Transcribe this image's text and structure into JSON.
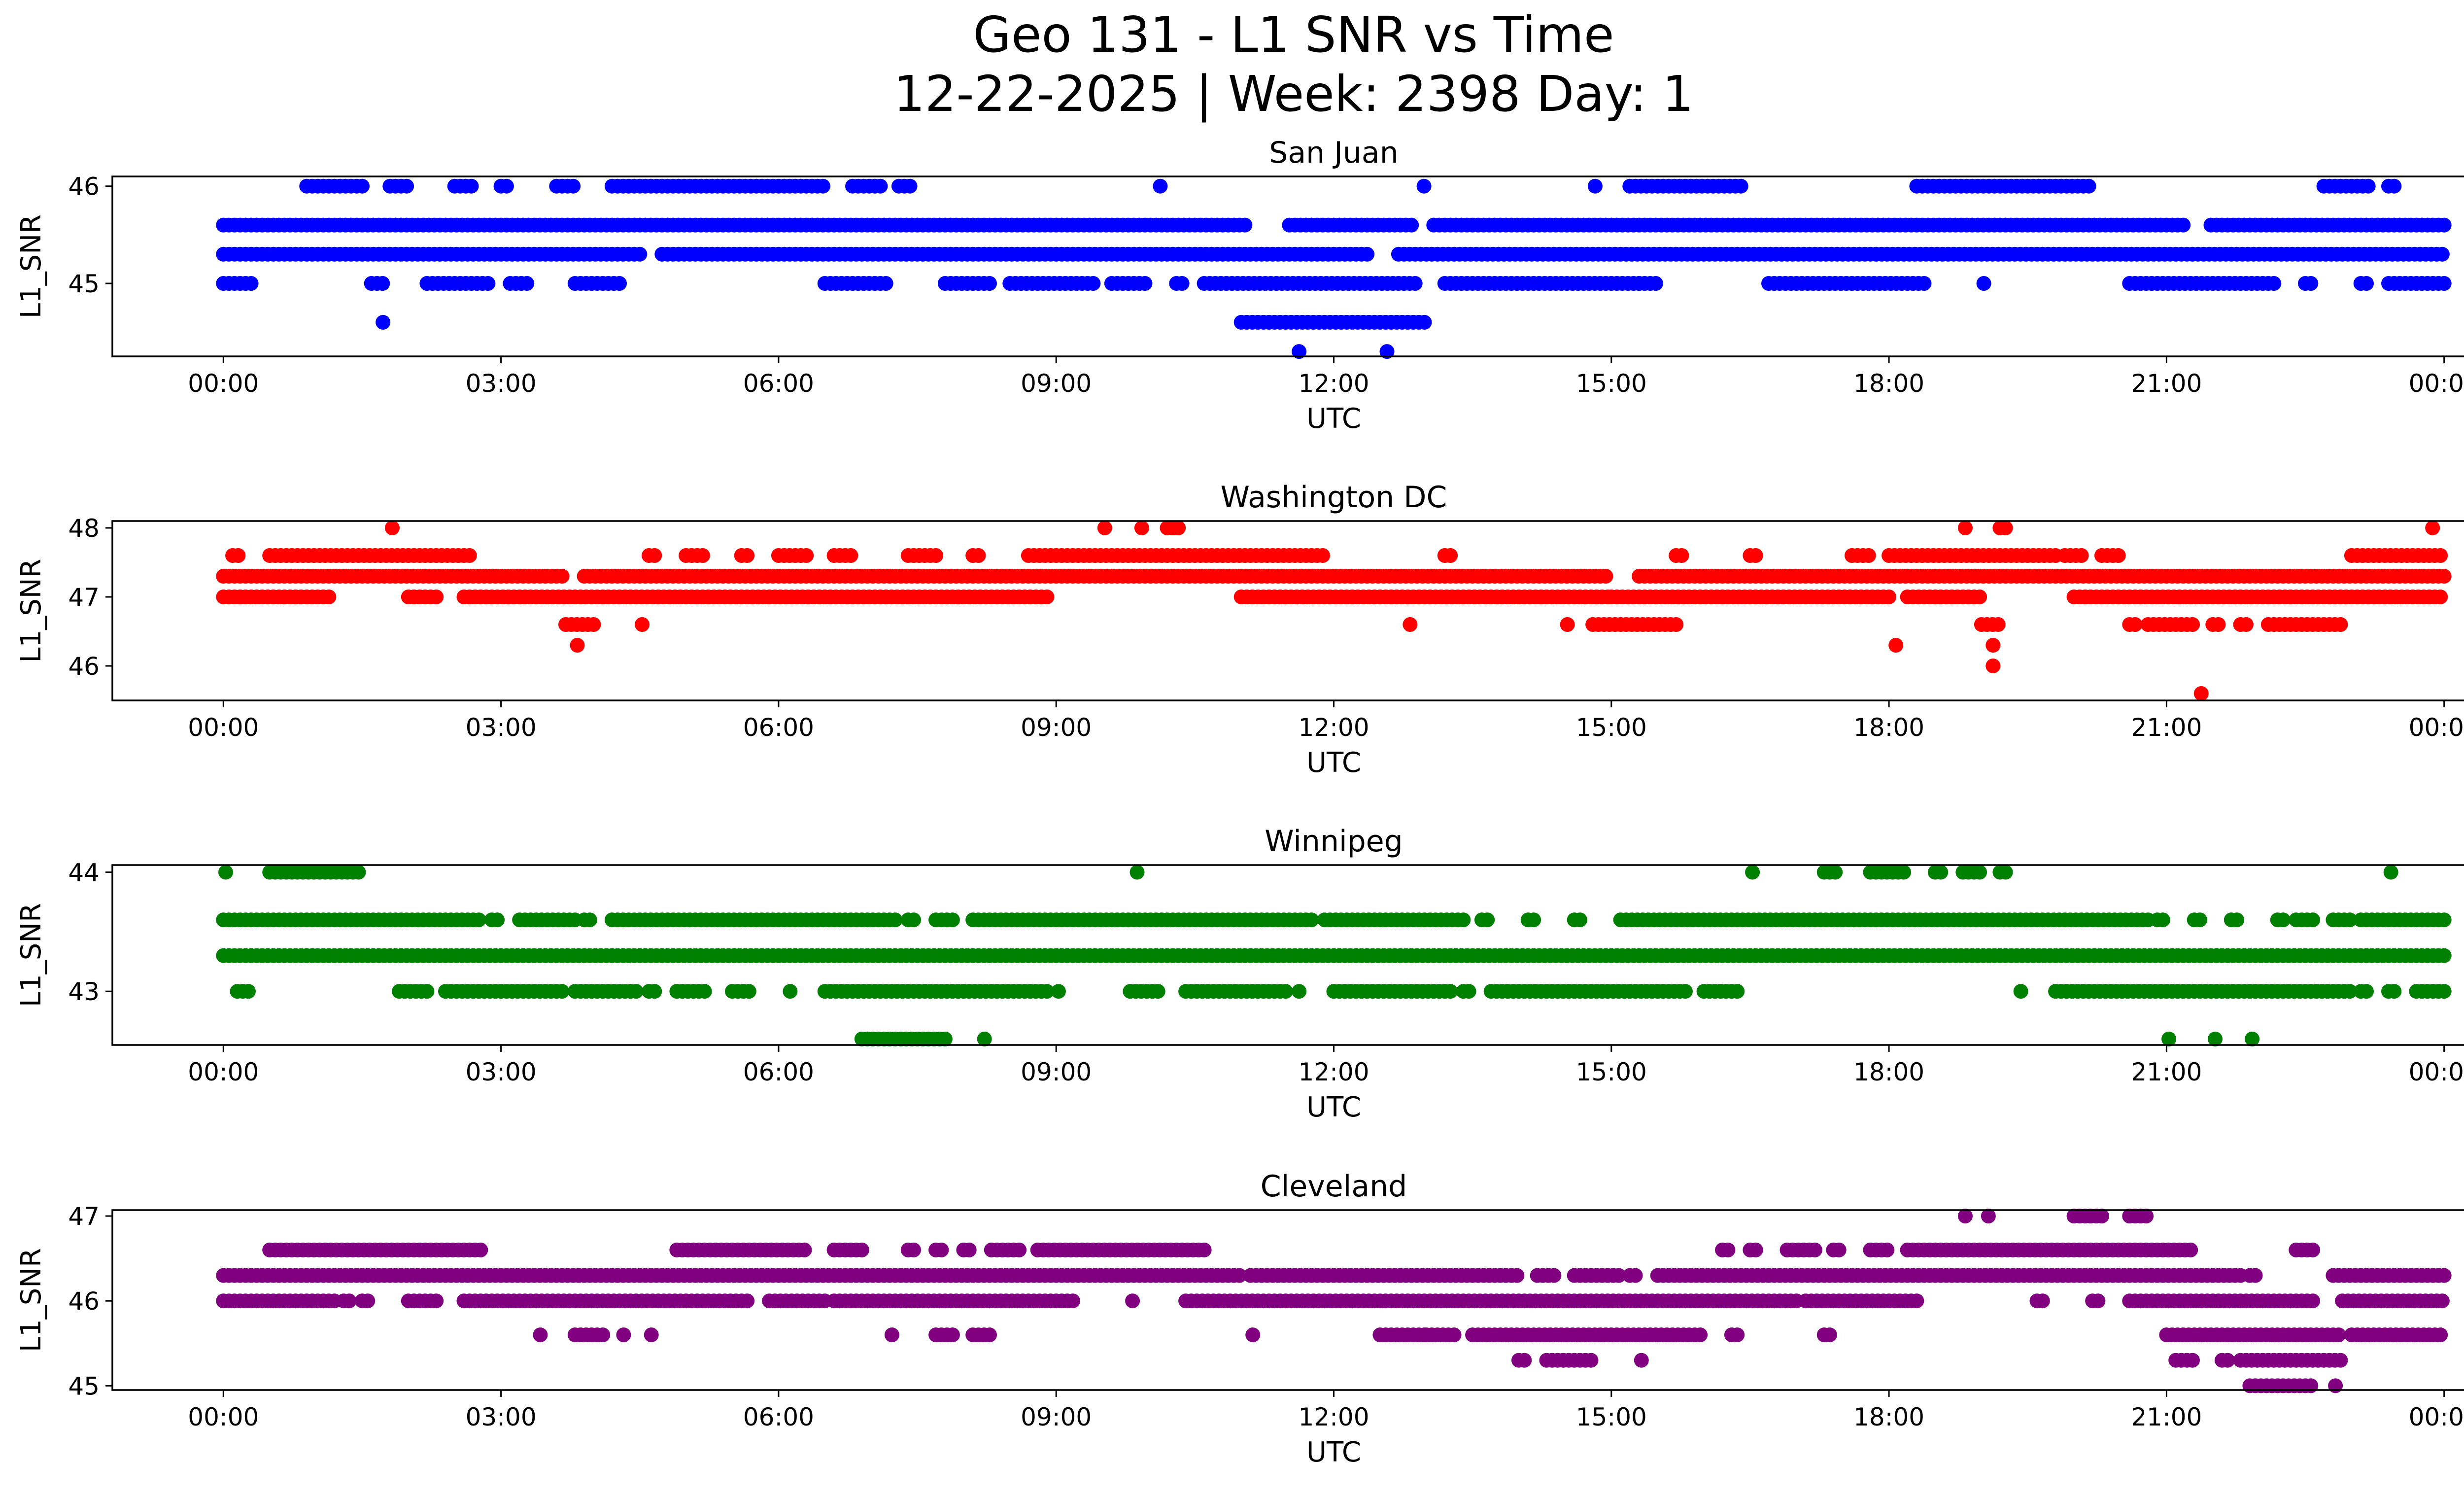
{
  "figure": {
    "title_line1": "Geo 131 - L1 SNR vs Time",
    "title_line2": "12-22-2025 | Week: 2398 Day: 1"
  },
  "chart_data": [
    {
      "type": "scatter",
      "title": "San Juan",
      "xlabel": "UTC",
      "ylabel": "L1_SNR",
      "color": "#0000ff",
      "x_ticks": [
        "00:00",
        "03:00",
        "06:00",
        "09:00",
        "12:00",
        "15:00",
        "18:00",
        "21:00",
        "00:00"
      ],
      "y_ticks": [
        45,
        46
      ],
      "xlim": [
        -1.2,
        25.2
      ],
      "ylim": [
        44.25,
        46.1
      ],
      "levels": [
        {
          "y": 45.6,
          "ranges": [
            [
              0,
              24
            ]
          ],
          "gaps": [
            [
              11.08,
              11.5
            ],
            [
              12.9,
              13.05
            ],
            [
              21.2,
              21.45
            ]
          ]
        },
        {
          "y": 45.3,
          "ranges": [
            [
              0,
              12.4
            ],
            [
              12.7,
              24
            ]
          ],
          "gaps": [
            [
              4.5,
              4.7
            ]
          ]
        },
        {
          "y": 45.0,
          "ranges": [
            [
              0,
              0.35
            ],
            [
              1.6,
              1.75
            ],
            [
              2.2,
              2.9
            ],
            [
              3.1,
              3.3
            ],
            [
              3.8,
              4.3
            ],
            [
              6.5,
              7.2
            ],
            [
              7.8,
              8.3
            ],
            [
              8.5,
              9.4
            ],
            [
              9.6,
              10.0
            ],
            [
              10.3,
              10.4
            ],
            [
              10.6,
              12.9
            ],
            [
              13.2,
              15.3
            ],
            [
              15.3,
              15.5
            ],
            [
              16.7,
              18.4
            ],
            [
              19.0,
              19.05
            ],
            [
              20.6,
              22.2
            ],
            [
              22.5,
              22.6
            ],
            [
              23.1,
              23.2
            ],
            [
              23.4,
              24
            ]
          ]
        },
        {
          "y": 46.0,
          "ranges": [
            [
              0.9,
              1.55
            ],
            [
              1.8,
              2.0
            ],
            [
              2.5,
              2.7
            ],
            [
              3.0,
              3.1
            ],
            [
              3.6,
              3.8
            ],
            [
              4.2,
              6.5
            ],
            [
              6.8,
              7.1
            ],
            [
              7.3,
              7.45
            ],
            [
              10.1,
              10.15
            ],
            [
              12.95,
              13.0
            ],
            [
              14.8,
              14.85
            ],
            [
              15.2,
              16.4
            ],
            [
              18.3,
              20.2
            ],
            [
              22.7,
              23.2
            ],
            [
              23.4,
              23.5
            ]
          ]
        },
        {
          "y": 44.6,
          "ranges": [
            [
              11.0,
              13.0
            ]
          ]
        },
        {
          "y": 44.6,
          "ranges": [
            [
              1.7,
              1.75
            ]
          ]
        },
        {
          "y": 44.3,
          "ranges": [
            [
              11.6,
              11.65
            ],
            [
              12.55,
              12.6
            ]
          ]
        }
      ]
    },
    {
      "type": "scatter",
      "title": "Washington DC",
      "xlabel": "UTC",
      "ylabel": "L1_SNR",
      "color": "#ff0000",
      "x_ticks": [
        "00:00",
        "03:00",
        "06:00",
        "09:00",
        "12:00",
        "15:00",
        "18:00",
        "21:00",
        "00:00"
      ],
      "y_ticks": [
        46,
        47,
        48
      ],
      "xlim": [
        -1.2,
        25.2
      ],
      "ylim": [
        45.5,
        48.1
      ],
      "levels": [
        {
          "y": 47.3,
          "ranges": [
            [
              0,
              3.7
            ],
            [
              3.9,
              24
            ]
          ],
          "gaps": [
            [
              15.0,
              15.3
            ]
          ]
        },
        {
          "y": 47.0,
          "ranges": [
            [
              0,
              1.15
            ],
            [
              2.0,
              2.3
            ],
            [
              2.6,
              8.9
            ],
            [
              11.0,
              15.0
            ],
            [
              15.0,
              18.0
            ],
            [
              18.2,
              19.0
            ],
            [
              20.0,
              24
            ]
          ]
        },
        {
          "y": 47.6,
          "ranges": [
            [
              0.1,
              0.2
            ],
            [
              0.5,
              2.7
            ],
            [
              4.6,
              4.7
            ],
            [
              5.0,
              5.2
            ],
            [
              5.6,
              5.7
            ],
            [
              6.0,
              6.3
            ],
            [
              6.6,
              6.8
            ],
            [
              7.4,
              7.7
            ],
            [
              8.1,
              8.2
            ],
            [
              8.7,
              11.9
            ],
            [
              13.2,
              13.3
            ],
            [
              15.7,
              15.8
            ],
            [
              16.5,
              16.6
            ],
            [
              17.6,
              17.8
            ],
            [
              18.0,
              19.8
            ],
            [
              19.9,
              20.1
            ],
            [
              20.3,
              20.5
            ],
            [
              23.0,
              24
            ]
          ]
        },
        {
          "y": 48.0,
          "ranges": [
            [
              1.8,
              1.85
            ],
            [
              9.5,
              9.55
            ],
            [
              9.9,
              9.95
            ],
            [
              10.2,
              10.35
            ],
            [
              18.8,
              18.85
            ],
            [
              19.2,
              19.3
            ],
            [
              23.85,
              23.9
            ]
          ]
        },
        {
          "y": 46.6,
          "ranges": [
            [
              3.7,
              4.0
            ],
            [
              4.5,
              4.55
            ],
            [
              12.8,
              12.85
            ],
            [
              14.5,
              14.55
            ],
            [
              14.8,
              15.7
            ],
            [
              19.0,
              19.2
            ],
            [
              20.6,
              20.7
            ],
            [
              20.8,
              21.3
            ],
            [
              21.5,
              21.6
            ],
            [
              21.8,
              21.9
            ],
            [
              22.1,
              22.9
            ]
          ]
        },
        {
          "y": 46.3,
          "ranges": [
            [
              3.8,
              3.85
            ],
            [
              18.05,
              18.1
            ],
            [
              19.1,
              19.15
            ]
          ]
        },
        {
          "y": 46.0,
          "ranges": [
            [
              19.1,
              19.15
            ]
          ]
        },
        {
          "y": 45.6,
          "ranges": [
            [
              21.35,
              21.4
            ]
          ]
        }
      ]
    },
    {
      "type": "scatter",
      "title": "Winnipeg",
      "xlabel": "UTC",
      "ylabel": "L1_SNR",
      "color": "#008000",
      "x_ticks": [
        "00:00",
        "03:00",
        "06:00",
        "09:00",
        "12:00",
        "15:00",
        "18:00",
        "21:00",
        "00:00"
      ],
      "y_ticks": [
        43,
        44
      ],
      "xlim": [
        -1.2,
        25.2
      ],
      "ylim": [
        42.55,
        44.06
      ],
      "levels": [
        {
          "y": 43.3,
          "ranges": [
            [
              0,
              24
            ]
          ]
        },
        {
          "y": 43.6,
          "ranges": [
            [
              0,
              2.8
            ],
            [
              2.9,
              3.0
            ],
            [
              3.2,
              3.8
            ],
            [
              3.9,
              4.0
            ],
            [
              4.2,
              7.3
            ],
            [
              7.4,
              7.5
            ],
            [
              7.7,
              7.9
            ],
            [
              8.1,
              11.8
            ],
            [
              11.9,
              13.4
            ],
            [
              13.6,
              13.7
            ],
            [
              14.1,
              14.2
            ],
            [
              14.6,
              14.7
            ],
            [
              15.1,
              20.8
            ],
            [
              20.9,
              21.0
            ],
            [
              21.3,
              21.4
            ],
            [
              21.7,
              21.8
            ],
            [
              22.2,
              22.3
            ],
            [
              22.4,
              22.6
            ],
            [
              22.8,
              23.0
            ],
            [
              23.1,
              24
            ]
          ]
        },
        {
          "y": 43.0,
          "ranges": [
            [
              0.15,
              0.3
            ],
            [
              1.9,
              2.2
            ],
            [
              2.4,
              3.7
            ],
            [
              3.8,
              4.5
            ],
            [
              4.6,
              4.7
            ],
            [
              4.9,
              5.2
            ],
            [
              5.5,
              5.7
            ],
            [
              6.1,
              6.15
            ],
            [
              6.5,
              8.9
            ],
            [
              9.0,
              9.05
            ],
            [
              9.8,
              10.1
            ],
            [
              10.4,
              11.5
            ],
            [
              11.6,
              11.65
            ],
            [
              12.0,
              13.3
            ],
            [
              13.4,
              13.5
            ],
            [
              13.7,
              15.8
            ],
            [
              16.0,
              16.4
            ],
            [
              19.4,
              19.45
            ],
            [
              19.8,
              23.0
            ],
            [
              23.1,
              23.2
            ],
            [
              23.4,
              23.5
            ],
            [
              23.7,
              24
            ]
          ]
        },
        {
          "y": 44.0,
          "ranges": [
            [
              0,
              0.05
            ],
            [
              0.5,
              1.5
            ],
            [
              9.85,
              9.9
            ],
            [
              16.5,
              16.55
            ],
            [
              17.3,
              17.45
            ],
            [
              17.8,
              18.2
            ],
            [
              18.5,
              18.6
            ],
            [
              18.8,
              19.0
            ],
            [
              19.2,
              19.3
            ],
            [
              23.4,
              23.45
            ]
          ]
        },
        {
          "y": 42.6,
          "ranges": [
            [
              6.9,
              7.8
            ],
            [
              8.2,
              8.25
            ],
            [
              21.0,
              21.05
            ],
            [
              21.5,
              21.55
            ],
            [
              21.9,
              21.95
            ]
          ]
        }
      ]
    },
    {
      "type": "scatter",
      "title": "Cleveland",
      "xlabel": "UTC",
      "ylabel": "L1_SNR",
      "color": "#800080",
      "x_ticks": [
        "00:00",
        "03:00",
        "06:00",
        "09:00",
        "12:00",
        "15:00",
        "18:00",
        "21:00",
        "00:00"
      ],
      "y_ticks": [
        45,
        46,
        47
      ],
      "xlim": [
        -1.2,
        25.2
      ],
      "ylim": [
        44.95,
        47.07
      ],
      "levels": [
        {
          "y": 46.3,
          "ranges": [
            [
              0,
              14.0
            ],
            [
              14.2,
              14.4
            ],
            [
              14.6,
              15.1
            ],
            [
              15.2,
              15.3
            ],
            [
              15.5,
              21.8
            ],
            [
              21.9,
              22.0
            ],
            [
              22.8,
              24
            ]
          ],
          "gaps": [
            [
              11.0,
              11.1
            ]
          ]
        },
        {
          "y": 46.0,
          "ranges": [
            [
              0,
              1.2
            ],
            [
              1.3,
              1.4
            ],
            [
              1.5,
              1.6
            ],
            [
              2.0,
              2.3
            ],
            [
              2.6,
              5.7
            ],
            [
              5.9,
              6.5
            ],
            [
              6.6,
              9.2
            ],
            [
              9.8,
              9.85
            ],
            [
              10.4,
              17.0
            ],
            [
              17.1,
              18.3
            ],
            [
              19.6,
              19.7
            ],
            [
              20.2,
              20.3
            ],
            [
              20.6,
              22.6
            ],
            [
              22.9,
              24
            ]
          ]
        },
        {
          "y": 46.6,
          "ranges": [
            [
              0.5,
              2.8
            ],
            [
              4.9,
              6.3
            ],
            [
              6.6,
              6.9
            ],
            [
              7.4,
              7.5
            ],
            [
              7.7,
              7.8
            ],
            [
              8.0,
              8.1
            ],
            [
              8.3,
              8.6
            ],
            [
              8.8,
              10.6
            ],
            [
              16.2,
              16.3
            ],
            [
              16.5,
              16.6
            ],
            [
              16.9,
              17.2
            ],
            [
              17.4,
              17.5
            ],
            [
              17.8,
              18.0
            ],
            [
              18.2,
              21.3
            ],
            [
              22.4,
              22.6
            ]
          ]
        },
        {
          "y": 45.6,
          "ranges": [
            [
              3.4,
              3.45
            ],
            [
              3.8,
              4.1
            ],
            [
              4.3,
              4.35
            ],
            [
              4.6,
              4.65
            ],
            [
              7.2,
              7.25
            ],
            [
              7.7,
              7.9
            ],
            [
              8.1,
              8.3
            ],
            [
              11.1,
              11.15
            ],
            [
              12.5,
              13.0
            ],
            [
              13.0,
              13.3
            ],
            [
              13.5,
              16.0
            ],
            [
              16.3,
              16.4
            ],
            [
              17.3,
              17.4
            ],
            [
              21.0,
              22.9
            ],
            [
              23.0,
              24
            ]
          ]
        },
        {
          "y": 45.3,
          "ranges": [
            [
              14.0,
              14.1
            ],
            [
              14.3,
              14.8
            ],
            [
              15.3,
              15.35
            ],
            [
              21.1,
              21.3
            ],
            [
              21.6,
              21.7
            ],
            [
              21.8,
              22.9
            ]
          ]
        },
        {
          "y": 45.0,
          "ranges": [
            [
              21.9,
              22.6
            ],
            [
              22.8,
              22.85
            ]
          ]
        },
        {
          "y": 47.0,
          "ranges": [
            [
              18.8,
              18.85
            ],
            [
              19.05,
              19.1
            ],
            [
              20.0,
              20.3
            ],
            [
              20.6,
              20.8
            ]
          ]
        }
      ]
    }
  ]
}
